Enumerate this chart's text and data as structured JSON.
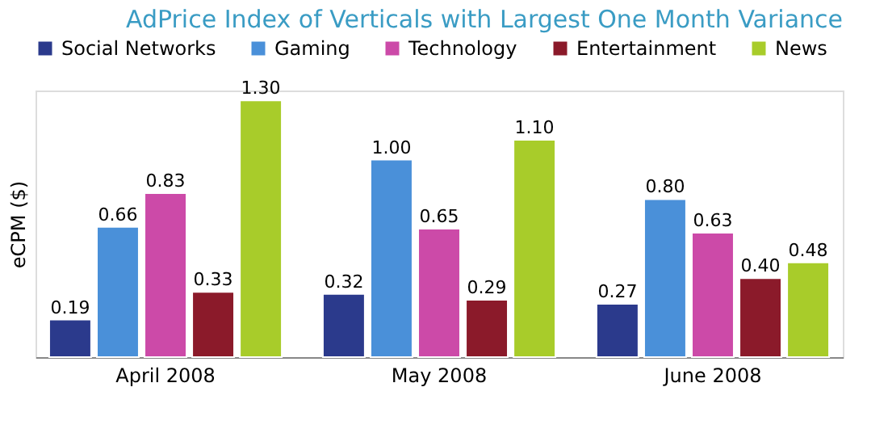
{
  "chart_data": {
    "type": "bar",
    "title": "AdPrice Index of Verticals with Largest One Month Variance",
    "ylabel": "eCPM ($)",
    "categories": [
      "April 2008",
      "May 2008",
      "June 2008"
    ],
    "series": [
      {
        "name": "Social Networks",
        "color": "#2b3a8c",
        "values": [
          0.19,
          0.32,
          0.27
        ],
        "value_labels": [
          "0.19",
          "0.32",
          "0.27"
        ]
      },
      {
        "name": "Gaming",
        "color": "#4a90d9",
        "values": [
          0.66,
          1.0,
          0.8
        ],
        "value_labels": [
          "0.66",
          "1.00",
          "0.80"
        ]
      },
      {
        "name": "Technology",
        "color": "#cc4aa8",
        "values": [
          0.83,
          0.65,
          0.63
        ],
        "value_labels": [
          "0.83",
          "0.65",
          "0.63"
        ]
      },
      {
        "name": "Entertainment",
        "color": "#8b1a2a",
        "values": [
          0.33,
          0.29,
          0.4
        ],
        "value_labels": [
          "0.33",
          "0.29",
          "0.40"
        ]
      },
      {
        "name": "News",
        "color": "#a8cc2a",
        "values": [
          1.3,
          1.1,
          0.48
        ],
        "value_labels": [
          "1.30",
          "1.10",
          "0.48"
        ]
      }
    ],
    "ylim": [
      0,
      1.35
    ],
    "legend": "top",
    "grid": false,
    "tick_labels": "x"
  }
}
